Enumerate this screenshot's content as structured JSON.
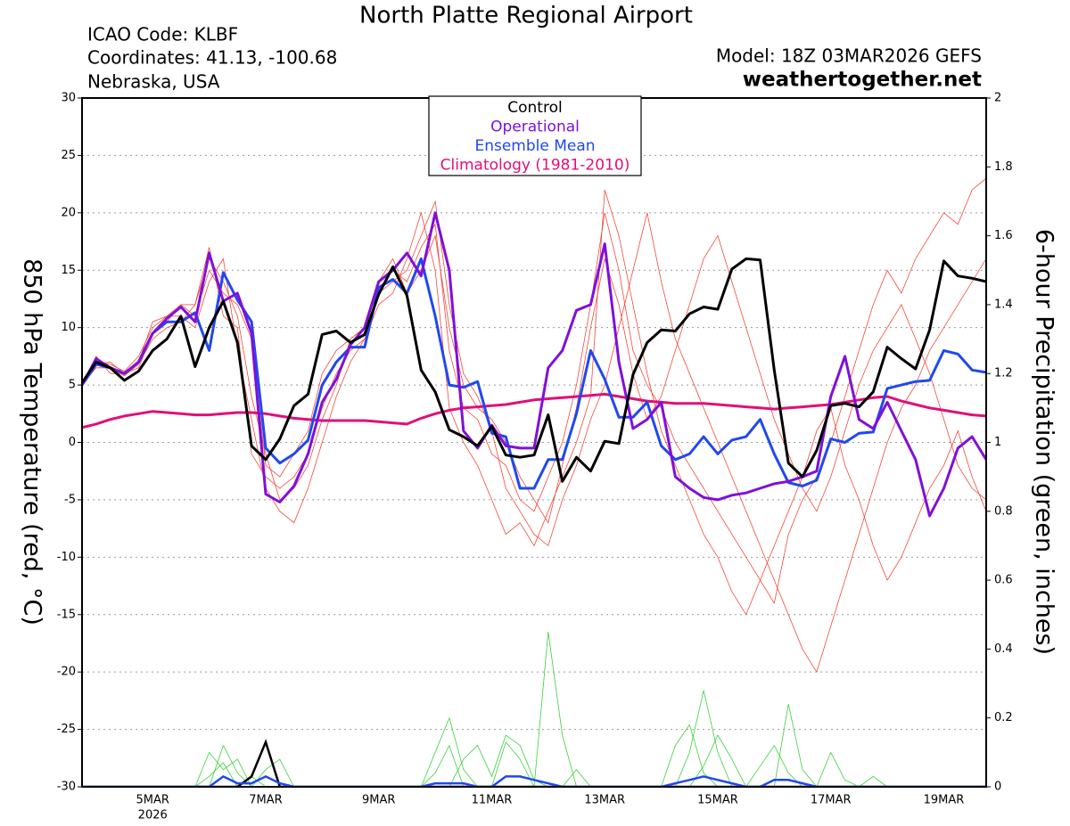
{
  "chart_data": {
    "type": "line",
    "title": "North Platte Regional Airport",
    "info_left": [
      "ICAO Code: KLBF",
      "Coordinates: 41.13, -100.68",
      "Nebraska, USA"
    ],
    "model": "Model: 18Z 03MAR2026 GEFS",
    "site": "weathertogether.net",
    "site_color": "#1e9be8",
    "ylabel": "850 hPa Temperature (red, °C)",
    "y2label": "6-hour Precipitation (green, inches)",
    "categories": [
      null,
      null,
      null,
      null,
      null,
      "5MAR",
      null,
      null,
      null,
      null,
      null,
      null,
      null,
      "7MAR",
      null,
      null,
      null,
      null,
      null,
      null,
      null,
      "9MAR",
      null,
      null,
      null,
      null,
      null,
      null,
      null,
      "11MAR",
      null,
      null,
      null,
      null,
      null,
      null,
      null,
      "13MAR",
      null,
      null,
      null,
      null,
      null,
      null,
      null,
      "15MAR",
      null,
      null,
      null,
      null,
      null,
      null,
      null,
      "17MAR",
      null,
      null,
      null,
      null,
      null,
      null,
      null,
      "19MAR",
      null,
      null,
      null
    ],
    "year": "2026",
    "ylim": [
      -30,
      30
    ],
    "yticks": [
      -30,
      -25,
      -20,
      -15,
      -10,
      -5,
      0,
      5,
      10,
      15,
      20,
      25,
      30
    ],
    "y2lim": [
      0,
      2
    ],
    "y2ticks": [
      0,
      0.2,
      0.4,
      0.6,
      0.8,
      1,
      1.2,
      1.4,
      1.6,
      1.8,
      2
    ],
    "grid": true,
    "series": [
      {
        "name": "Control",
        "color": "#000000",
        "values": [
          5.2,
          7,
          6.5,
          5.4,
          6.2,
          8,
          9,
          11,
          6.6,
          10,
          12.3,
          8.7,
          -0.3,
          -1.5,
          0.3,
          3.2,
          4.2,
          9.4,
          9.7,
          8.7,
          9.4,
          12.9,
          15.3,
          12.8,
          6.3,
          4.4,
          1.1,
          0.5,
          -0.3,
          1.4,
          -1.1,
          -1.3,
          -1.1,
          2.4,
          -3.4,
          -1.3,
          -2.5,
          0.1,
          -0.1,
          5.9,
          8.7,
          9.8,
          9.7,
          11.2,
          11.8,
          11.6,
          15.1,
          16,
          15.9,
          6.3,
          -1.8,
          -3,
          -0.7,
          3.2,
          3.4,
          3.1,
          4.4,
          8.3,
          7.3,
          6.4,
          9.8,
          15.8,
          14.5,
          14.3,
          14
        ]
      },
      {
        "name": "Operational",
        "color": "#8010d8",
        "values": [
          5,
          7.3,
          6.5,
          6,
          7,
          9.5,
          10.8,
          11.8,
          10.5,
          16.5,
          12.3,
          13,
          9.5,
          -4.5,
          -5.2,
          -3.8,
          -1,
          3.5,
          5.5,
          8.5,
          10,
          14,
          15,
          16.5,
          14.5,
          20,
          15,
          1,
          -0.5,
          1.5,
          -0.3,
          -0.5,
          -0.5,
          6.5,
          8,
          11.5,
          12,
          17.3,
          7,
          1.2,
          2,
          3.5,
          -3,
          -4,
          -4.8,
          -5,
          -4.6,
          -4.4,
          -4,
          -3.6,
          -3.4,
          -3,
          -2.5,
          4,
          7.5,
          2,
          1.2,
          3.5,
          1,
          -1.5,
          -6.4,
          -4,
          -0.5,
          0.5,
          -1.5
        ]
      },
      {
        "name": "Ensemble Mean",
        "color": "#2048f0",
        "values": [
          5,
          6.8,
          6.5,
          6,
          7,
          9.5,
          10.5,
          10.5,
          11.3,
          8,
          14.8,
          12.4,
          10.5,
          -0.5,
          -1.8,
          -1,
          0.2,
          5,
          7,
          8.3,
          8.3,
          13.5,
          14.2,
          13,
          16,
          11,
          5,
          4.8,
          5.3,
          0.8,
          0.5,
          -4,
          -4,
          -1.5,
          -1.5,
          2.5,
          8,
          5.5,
          2.2,
          2.2,
          3.5,
          -0.3,
          -1.5,
          -1,
          0.5,
          -1,
          0.2,
          0.5,
          2,
          -1,
          -3.5,
          -3.8,
          -3.3,
          0.3,
          0,
          0.8,
          0.9,
          4.7,
          5,
          5.3,
          5.4,
          8,
          7.7,
          6.3,
          6.1
        ]
      },
      {
        "name": "Climatology (1981-2010)",
        "color": "#e0107a",
        "values": [
          1.3,
          1.6,
          2,
          2.3,
          2.5,
          2.7,
          2.6,
          2.5,
          2.4,
          2.4,
          2.5,
          2.6,
          2.6,
          2.5,
          2.3,
          2.1,
          2,
          1.9,
          1.9,
          1.9,
          1.9,
          1.8,
          1.7,
          1.6,
          2.1,
          2.5,
          2.8,
          3,
          3.1,
          3.2,
          3.3,
          3.5,
          3.7,
          3.8,
          3.9,
          4,
          4.1,
          4.2,
          4,
          3.8,
          3.6,
          3.5,
          3.4,
          3.4,
          3.4,
          3.3,
          3.2,
          3.1,
          3,
          2.9,
          3,
          3.1,
          3.2,
          3.3,
          3.5,
          3.7,
          3.9,
          4,
          3.6,
          3.3,
          3,
          2.8,
          2.6,
          2.4,
          2.3
        ]
      }
    ],
    "member_color": "#f04a3a",
    "temperature_members": [
      [
        5,
        7,
        6.8,
        6.2,
        7.5,
        10,
        11,
        12,
        11,
        15,
        13,
        12,
        9,
        -2,
        -3,
        -1,
        1,
        6,
        8,
        9,
        10,
        14,
        15,
        14,
        17,
        19,
        8,
        3,
        2,
        -1,
        -2,
        -5,
        -6,
        -3,
        0,
        5,
        12,
        20,
        15,
        8,
        5,
        3,
        0,
        -2,
        -4,
        -6,
        -8,
        -10,
        -12,
        -14,
        -8,
        -5,
        -3,
        0,
        4,
        8,
        12,
        15,
        13,
        16,
        18,
        20,
        19,
        22,
        23
      ],
      [
        5,
        6.5,
        6.5,
        5.8,
        6.8,
        9,
        10,
        10.5,
        12,
        17,
        11,
        10,
        -1,
        -3,
        -4,
        -3,
        -1,
        3,
        6,
        8,
        9,
        12,
        13,
        16,
        20,
        15,
        3,
        0,
        -2,
        -5,
        -8,
        -7,
        -9,
        -6,
        -3,
        0,
        4,
        22,
        18,
        12,
        6,
        1,
        -2,
        -5,
        -8,
        -10,
        -13,
        -15,
        -12,
        -9,
        -6,
        -3,
        1,
        3,
        -2,
        -5,
        -9,
        -12,
        -10,
        -7,
        -4,
        -2,
        1,
        -3,
        -6
      ],
      [
        5,
        7.5,
        6,
        6,
        7,
        10.5,
        11,
        11,
        10,
        14,
        16,
        8,
        2,
        -4,
        -6,
        -7,
        -4,
        0,
        4,
        7,
        9,
        13,
        14,
        15,
        18,
        21,
        12,
        6,
        4,
        1,
        -4,
        -6,
        -8,
        -9,
        -5,
        -2,
        2,
        5,
        10,
        15,
        20,
        14,
        9,
        6,
        3,
        0,
        -3,
        -6,
        -9,
        -12,
        -15,
        -18,
        -20,
        -16,
        -12,
        -8,
        -4,
        0,
        3,
        5,
        8,
        10,
        12,
        14,
        16
      ],
      [
        5,
        6.8,
        7,
        6,
        6.5,
        9.5,
        10.5,
        12,
        12,
        16,
        14,
        11,
        4,
        -1,
        -5,
        -4,
        -2,
        2,
        5,
        9,
        10,
        14,
        16,
        13,
        15,
        18,
        10,
        5,
        3,
        2,
        0,
        -3,
        -5,
        -7,
        -2,
        3,
        10,
        16,
        12,
        6,
        2,
        4,
        8,
        12,
        16,
        18,
        14,
        10,
        6,
        2,
        -1,
        -4,
        -6,
        -3,
        1,
        5,
        8,
        10,
        12,
        9,
        6,
        2,
        -2,
        -4,
        -5
      ]
    ],
    "precip_member_color": "#3ad03a",
    "precip_members": [
      [
        0,
        0,
        0,
        0,
        0,
        0,
        0,
        0,
        0,
        0.1,
        0.05,
        0.08,
        0,
        0,
        0,
        0,
        0,
        0,
        0,
        0,
        0,
        0,
        0,
        0,
        0,
        0.1,
        0.2,
        0.05,
        0,
        0,
        0,
        0,
        0,
        0.45,
        0.15,
        0,
        0,
        0,
        0,
        0,
        0,
        0,
        0,
        0.1,
        0.28,
        0.1,
        0,
        0,
        0,
        0,
        0.24,
        0.05,
        0,
        0,
        0,
        0,
        0,
        0,
        0,
        0,
        0,
        0,
        0,
        0,
        0
      ],
      [
        0,
        0,
        0,
        0,
        0,
        0,
        0,
        0,
        0,
        0,
        0.12,
        0.04,
        0,
        0.05,
        0.08,
        0,
        0,
        0,
        0,
        0,
        0,
        0,
        0,
        0,
        0,
        0,
        0,
        0.08,
        0.12,
        0.03,
        0.15,
        0.12,
        0.02,
        0,
        0,
        0,
        0,
        0,
        0,
        0,
        0,
        0,
        0,
        0,
        0.06,
        0.15,
        0.08,
        0,
        0,
        0,
        0,
        0,
        0,
        0.1,
        0.02,
        0,
        0,
        0,
        0,
        0,
        0,
        0,
        0,
        0,
        0
      ],
      [
        0,
        0,
        0,
        0,
        0,
        0,
        0,
        0,
        0,
        0.03,
        0.07,
        0,
        0.03,
        0,
        0,
        0,
        0,
        0,
        0,
        0,
        0,
        0,
        0,
        0,
        0,
        0.04,
        0.12,
        0,
        0,
        0,
        0.13,
        0.08,
        0,
        0,
        0,
        0.05,
        0,
        0,
        0,
        0,
        0,
        0,
        0.12,
        0.18,
        0.04,
        0,
        0,
        0,
        0.06,
        0.12,
        0.04,
        0,
        0,
        0,
        0,
        0,
        0.03,
        0,
        0,
        0,
        0,
        0,
        0,
        0,
        0
      ]
    ],
    "precip_series": [
      {
        "color": "#000000",
        "axis": "y2",
        "values": [
          0,
          0,
          0,
          0,
          0,
          0,
          0,
          0,
          0,
          0,
          0,
          0,
          0.03,
          0.13,
          0,
          0,
          0,
          0,
          0,
          0,
          0,
          0,
          0,
          0,
          0,
          0,
          0,
          0,
          0,
          0,
          0,
          0,
          0,
          0,
          0,
          0,
          0,
          0,
          0,
          0,
          0,
          0,
          0,
          0,
          0,
          0,
          0,
          0,
          0,
          0,
          0,
          0,
          0,
          0,
          0,
          0,
          0,
          0,
          0,
          0,
          0,
          0,
          0,
          0,
          0
        ]
      },
      {
        "color": "#2048f0",
        "axis": "y2",
        "values": [
          0,
          0,
          0,
          0,
          0,
          0,
          0,
          0,
          0,
          0,
          0.03,
          0.01,
          0.01,
          0.03,
          0.01,
          0,
          0,
          0,
          0,
          0,
          0,
          0,
          0,
          0,
          0,
          0.01,
          0.01,
          0.01,
          0,
          0,
          0.03,
          0.03,
          0.02,
          0.01,
          0,
          0,
          0,
          0,
          0,
          0,
          0,
          0,
          0.01,
          0.02,
          0.03,
          0.02,
          0.01,
          0,
          0,
          0.02,
          0.02,
          0.01,
          0,
          0,
          0,
          0,
          0,
          0,
          0,
          0,
          0,
          0,
          0,
          0,
          0
        ]
      }
    ]
  }
}
